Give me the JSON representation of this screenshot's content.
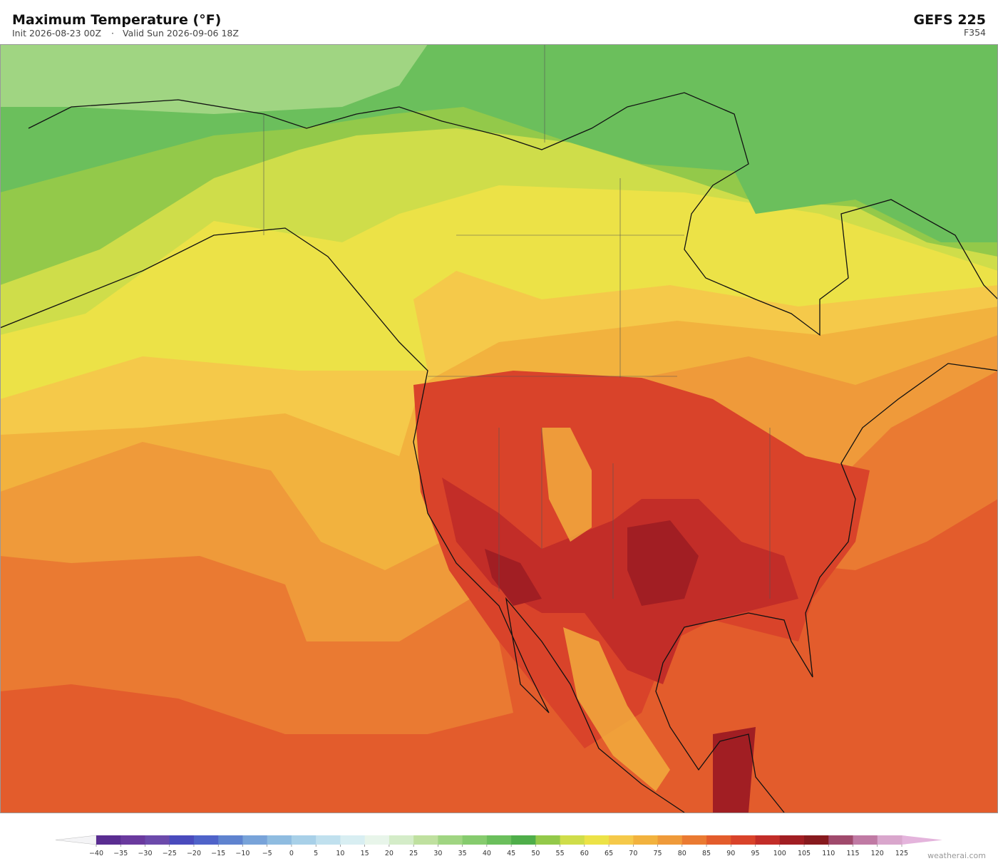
{
  "header": {
    "title": "Maximum Temperature  (°F)",
    "init": "Init 2026-08-23 00Z",
    "separator": "·",
    "valid": "Valid Sun 2026-09-06 18Z",
    "model": "GEFS  225",
    "forecast_hour": "F354"
  },
  "colorbar": {
    "under_color": "#f4f4f6",
    "over_color": "#e4b4dc",
    "colors": [
      "#5a2d91",
      "#6a3a9e",
      "#6c4aab",
      "#4a4bbd",
      "#4f63c9",
      "#5f83cf",
      "#78a3d9",
      "#8fbce0",
      "#a8d0e8",
      "#c0e0ee",
      "#d8eef2",
      "#e8f5ea",
      "#d4ecc8",
      "#bfe09f",
      "#a0d582",
      "#86cb6e",
      "#6bbf5c",
      "#4fae4a",
      "#93c94a",
      "#cfdd4a",
      "#ece247",
      "#f5c94a",
      "#f2b23e",
      "#ef9a3a",
      "#ea7a32",
      "#e35c2c",
      "#d9432a",
      "#c22d28",
      "#a11e23",
      "#871a1e",
      "#a04a6c",
      "#c07aa4",
      "#d9a6cc"
    ],
    "ticks": [
      {
        "value": -40,
        "label": "−40"
      },
      {
        "value": -35,
        "label": "−35"
      },
      {
        "value": -30,
        "label": "−30"
      },
      {
        "value": -25,
        "label": "−25"
      },
      {
        "value": -20,
        "label": "−20"
      },
      {
        "value": -15,
        "label": "−15"
      },
      {
        "value": -10,
        "label": "−10"
      },
      {
        "value": -5,
        "label": "−5"
      },
      0,
      5,
      10,
      15,
      20,
      25,
      30,
      35,
      40,
      45,
      50,
      55,
      60,
      65,
      70,
      75,
      80,
      85,
      90,
      95,
      100,
      105,
      110,
      115,
      120,
      125
    ]
  },
  "footer": {
    "credit": "weatherai.com"
  }
}
